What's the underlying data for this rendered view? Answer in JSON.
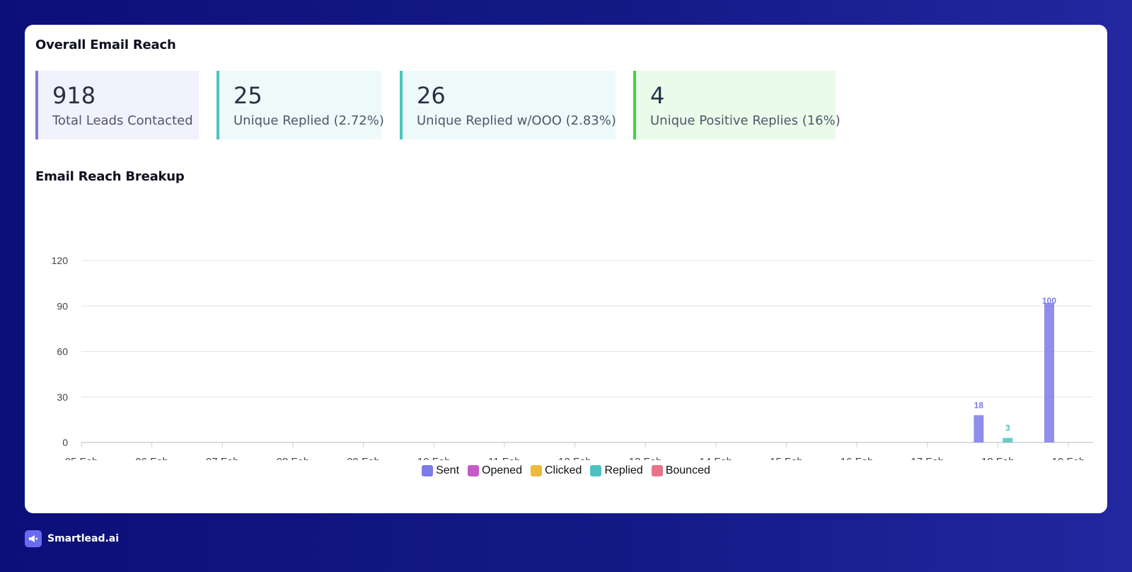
{
  "reach": {
    "title": "Overall Email Reach",
    "stats": [
      {
        "value": "918",
        "label": "Total Leads Contacted",
        "accent": "#7b79d8",
        "bg": "#f1f2fd"
      },
      {
        "value": "25",
        "label": "Unique Replied (2.72%)",
        "accent": "#4cc3c0",
        "bg": "#edfaf9"
      },
      {
        "value": "26",
        "label": "Unique Replied w/OOO (2.83%)",
        "accent": "#4cc3c0",
        "bg": "#edfaf9"
      },
      {
        "value": "4",
        "label": "Unique Positive Replies (16%)",
        "accent": "#3fd24a",
        "bg": "#eafbea"
      }
    ]
  },
  "breakup": {
    "title": "Email Reach Breakup"
  },
  "chart_data": {
    "type": "bar",
    "title": "Email Reach Breakup",
    "xlabel": "",
    "ylabel": "",
    "ylim": [
      0,
      120
    ],
    "yticks": [
      0,
      30,
      60,
      90,
      120
    ],
    "grid": true,
    "legend_position": "bottom-center",
    "categories": [
      "05 Feb",
      "06 Feb",
      "07 Feb",
      "08 Feb",
      "09 Feb",
      "10 Feb",
      "11 Feb",
      "12 Feb",
      "13 Feb",
      "14 Feb",
      "15 Feb",
      "16 Feb",
      "17 Feb",
      "18 Feb",
      "19 Feb"
    ],
    "series": [
      {
        "name": "Sent",
        "color": "#7b7be8",
        "values": [
          0,
          0,
          0,
          0,
          0,
          0,
          0,
          0,
          0,
          0,
          0,
          0,
          18,
          100,
          0
        ]
      },
      {
        "name": "Opened",
        "color": "#c65ac8",
        "values": [
          0,
          0,
          0,
          0,
          0,
          0,
          0,
          0,
          0,
          0,
          0,
          0,
          0,
          0,
          0
        ]
      },
      {
        "name": "Clicked",
        "color": "#f0b93a",
        "values": [
          0,
          0,
          0,
          0,
          0,
          0,
          0,
          0,
          0,
          0,
          0,
          0,
          0,
          0,
          0
        ]
      },
      {
        "name": "Replied",
        "color": "#4cc3c0",
        "values": [
          0,
          0,
          0,
          0,
          0,
          0,
          0,
          0,
          0,
          0,
          0,
          0,
          0,
          3,
          0
        ]
      },
      {
        "name": "Bounced",
        "color": "#e8738a",
        "values": [
          0,
          0,
          0,
          0,
          0,
          0,
          0,
          0,
          0,
          0,
          0,
          0,
          0,
          0,
          0
        ]
      }
    ]
  },
  "brand": {
    "name": "Smartlead.ai",
    "logo_icon": "megaphone-icon"
  }
}
